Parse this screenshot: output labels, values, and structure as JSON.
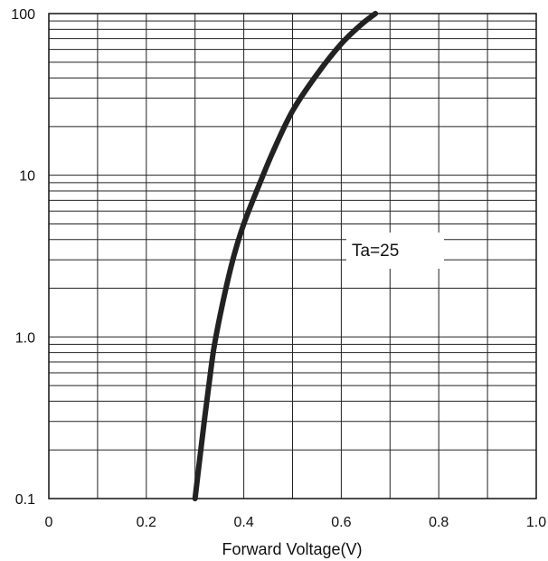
{
  "chart_data": {
    "type": "line",
    "title": "",
    "xlabel": "Forward Voltage(V)",
    "ylabel": "",
    "xlim": [
      0,
      1.0
    ],
    "ylim": [
      0.1,
      100
    ],
    "yscale": "log",
    "grid": true,
    "x_tick_labels": [
      "0",
      "0.2",
      "0.4",
      "0.6",
      "0.8",
      "1.0"
    ],
    "x_tick_values": [
      0,
      0.2,
      0.4,
      0.6,
      0.8,
      1.0
    ],
    "y_tick_labels": [
      "0.1",
      "1.0",
      "10",
      "100"
    ],
    "y_tick_values": [
      0.1,
      1,
      10,
      100
    ],
    "annotation": "Ta=25",
    "series": [
      {
        "color": "#222222",
        "x": [
          0.3,
          0.31,
          0.32,
          0.33,
          0.34,
          0.36,
          0.38,
          0.4,
          0.43,
          0.46,
          0.5,
          0.55,
          0.6,
          0.64,
          0.67
        ],
        "y": [
          0.1,
          0.18,
          0.32,
          0.55,
          0.9,
          1.8,
          3.2,
          5.0,
          8.5,
          14,
          25,
          42,
          65,
          85,
          100
        ]
      }
    ]
  }
}
